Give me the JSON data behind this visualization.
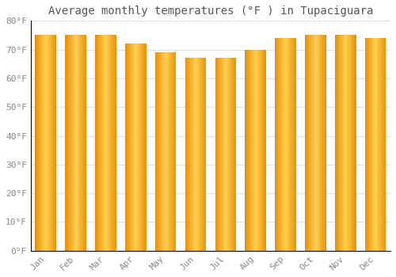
{
  "title": "Average monthly temperatures (°F ) in Tupaciguara",
  "months": [
    "Jan",
    "Feb",
    "Mar",
    "Apr",
    "May",
    "Jun",
    "Jul",
    "Aug",
    "Sep",
    "Oct",
    "Nov",
    "Dec"
  ],
  "values": [
    75,
    75,
    75,
    72,
    69,
    67,
    67,
    70,
    74,
    75,
    75,
    74
  ],
  "bar_color_edge": "#E8900A",
  "bar_color_center": "#FFD050",
  "bar_color_main": "#FFA820",
  "background_color": "#ffffff",
  "grid_color": "#e0e0e0",
  "ylim": [
    0,
    80
  ],
  "yticks": [
    0,
    10,
    20,
    30,
    40,
    50,
    60,
    70,
    80
  ],
  "ytick_labels": [
    "0°F",
    "10°F",
    "20°F",
    "30°F",
    "40°F",
    "50°F",
    "60°F",
    "70°F",
    "80°F"
  ],
  "title_fontsize": 10,
  "tick_fontsize": 8,
  "bar_width": 0.7,
  "n_gradient_steps": 50
}
